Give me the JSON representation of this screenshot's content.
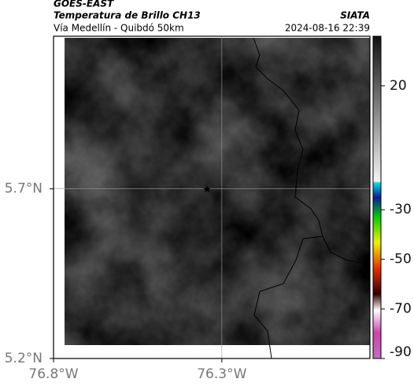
{
  "header": {
    "satellite": "GOES-EAST",
    "title": "Temperatura de Brillo CH13",
    "subtitle": "Vía Medellín - Quibdó 50km",
    "source": "SIATA",
    "datetime": "2024-08-16 22:39"
  },
  "map": {
    "xlim": [
      -76.8,
      -75.86
    ],
    "ylim": [
      5.2,
      6.15
    ],
    "xticks": [
      {
        "value": -76.8,
        "label": "76.8°W"
      },
      {
        "value": -76.3,
        "label": "76.3°W"
      }
    ],
    "yticks": [
      {
        "value": 5.2,
        "label": "5.2°N"
      },
      {
        "value": 5.7,
        "label": "5.7°N"
      }
    ]
  },
  "colorbar": {
    "lim": [
      -90,
      40
    ],
    "ticks": [
      20,
      -30,
      -50,
      -70,
      -90
    ]
  }
}
